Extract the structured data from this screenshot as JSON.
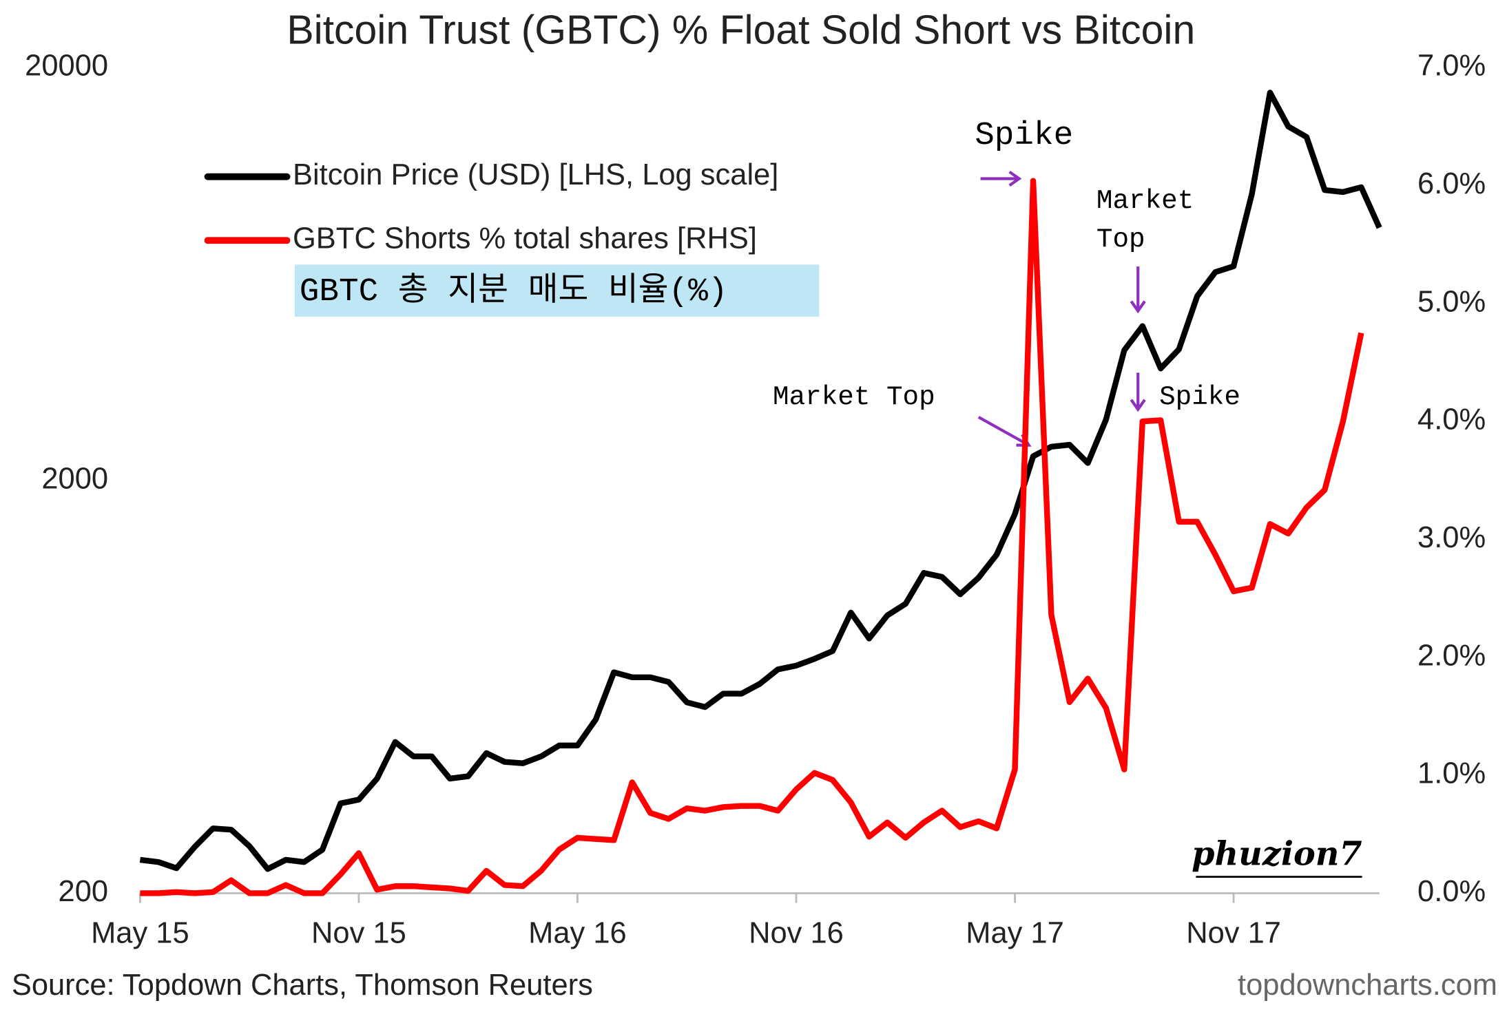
{
  "chart_data": {
    "type": "line",
    "title": "Bitcoin Trust (GBTC) % Float Sold Short vs Bitcoin",
    "categories": [
      "May 15",
      null,
      null,
      null,
      null,
      null,
      null,
      null,
      null,
      null,
      null,
      null,
      "Nov 15",
      null,
      null,
      null,
      null,
      null,
      null,
      null,
      null,
      null,
      null,
      null,
      "May 16",
      null,
      null,
      null,
      null,
      null,
      null,
      null,
      null,
      null,
      null,
      null,
      "Nov 16",
      null,
      null,
      null,
      null,
      null,
      null,
      null,
      null,
      null,
      null,
      null,
      "May 17",
      null,
      null,
      null,
      null,
      null,
      null,
      null,
      null,
      null,
      null,
      null,
      "Nov 17",
      null,
      null,
      null,
      null,
      null,
      null,
      null,
      null
    ],
    "series": [
      {
        "name": "Bitcoin Price (USD) [LHS, Log scale]",
        "color": "#000000",
        "axis": "y",
        "values": [
          241,
          238,
          230,
          259,
          287,
          285,
          260,
          229,
          241,
          238,
          255,
          330,
          337,
          379,
          465,
          429,
          429,
          379,
          384,
          437,
          416,
          413,
          429,
          456,
          456,
          527,
          686,
          667,
          667,
          650,
          580,
          565,
          609,
          609,
          643,
          697,
          712,
          739,
          772,
          957,
          828,
          942,
          1005,
          1194,
          1168,
          1060,
          1162,
          1322,
          1657,
          2288,
          2414,
          2440,
          2204,
          2808,
          4134,
          4730,
          3733,
          4157,
          5588,
          6393,
          6604,
          9884,
          17398,
          14402,
          13576,
          10100,
          9990,
          10262,
          8188
        ]
      },
      {
        "name": "GBTC Shorts % total shares [RHS]",
        "color": "#ff0000",
        "axis": "y2",
        "values": [
          0,
          0,
          0.01,
          0,
          0.01,
          0.11,
          0,
          0,
          0.07,
          0,
          0,
          0.16,
          0.34,
          0.03,
          0.06,
          0.06,
          0.05,
          0.04,
          0.02,
          0.19,
          0.07,
          0.06,
          0.19,
          0.37,
          0.47,
          0.46,
          0.45,
          0.94,
          0.68,
          0.63,
          0.72,
          0.7,
          0.73,
          0.74,
          0.74,
          0.7,
          0.88,
          1.02,
          0.96,
          0.77,
          0.48,
          0.6,
          0.47,
          0.6,
          0.7,
          0.56,
          0.61,
          0.55,
          1.05,
          6.04,
          2.36,
          1.62,
          1.82,
          1.57,
          1.05,
          4.0,
          4.01,
          3.15,
          3.15,
          2.87,
          2.56,
          2.59,
          3.13,
          3.05,
          3.27,
          3.42,
          4.0,
          4.75,
          null
        ]
      }
    ],
    "ylog": true,
    "ylim": [
      200,
      20000
    ],
    "yticks": [
      200,
      2000,
      20000
    ],
    "y2lim": [
      0,
      7
    ],
    "y2ticks": [
      {
        "value": 0,
        "label": "0.0%"
      },
      {
        "value": 1,
        "label": "1.0%"
      },
      {
        "value": 2,
        "label": "2.0%"
      },
      {
        "value": 3,
        "label": "3.0%"
      },
      {
        "value": 4,
        "label": "4.0%"
      },
      {
        "value": 5,
        "label": "5.0%"
      },
      {
        "value": 6,
        "label": "6.0%"
      },
      {
        "value": 7,
        "label": "7.0%"
      }
    ],
    "grid": false,
    "legend": "upper left",
    "annotations": [
      "Spike",
      "Market",
      "Top",
      "Market Top",
      "Spike"
    ],
    "translation": "GBTC 총 지분 매도 비율(%)",
    "watermark": "phuzion7",
    "source": "Source: Topdown Charts, Thomson Reuters",
    "credit": "topdowncharts.com"
  }
}
